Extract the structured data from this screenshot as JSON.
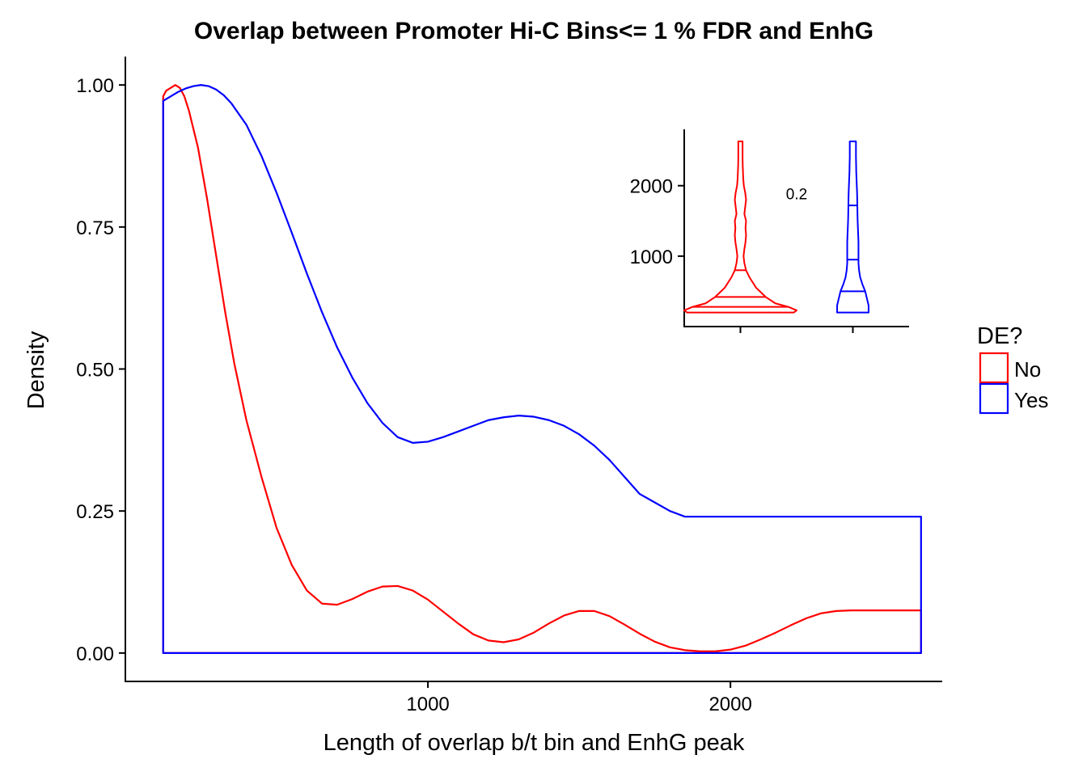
{
  "chart_data": [
    {
      "type": "area",
      "title": "Overlap between Promoter Hi-C Bins<= 1 % FDR and EnhG",
      "xlabel": "Length of overlap b/t bin and EnhG peak",
      "ylabel": "Density",
      "xlim": [
        0,
        2700
      ],
      "ylim": [
        -0.05,
        1.05
      ],
      "xticks": [
        1000,
        2000
      ],
      "yticks": [
        0.0,
        0.25,
        0.5,
        0.75,
        1.0
      ],
      "ytick_labels": [
        "0.00",
        "0.25",
        "0.50",
        "0.75",
        "1.00"
      ],
      "grid": false,
      "legend": {
        "title": "DE?",
        "position": "right"
      },
      "series": [
        {
          "name": "No",
          "color": "#ff0000",
          "x": [
            125,
            135,
            150,
            165,
            180,
            195,
            210,
            240,
            270,
            300,
            330,
            360,
            400,
            450,
            500,
            550,
            600,
            650,
            700,
            750,
            800,
            850,
            900,
            950,
            1000,
            1050,
            1100,
            1150,
            1200,
            1250,
            1300,
            1350,
            1400,
            1450,
            1500,
            1550,
            1600,
            1650,
            1700,
            1750,
            1800,
            1850,
            1900,
            1950,
            2000,
            2050,
            2100,
            2150,
            2200,
            2250,
            2300,
            2350,
            2400,
            2450,
            2500,
            2550,
            2600,
            2630
          ],
          "y": [
            0.98,
            0.99,
            0.995,
            1.0,
            0.995,
            0.98,
            0.955,
            0.89,
            0.8,
            0.7,
            0.6,
            0.51,
            0.41,
            0.31,
            0.22,
            0.155,
            0.11,
            0.087,
            0.085,
            0.095,
            0.108,
            0.117,
            0.118,
            0.11,
            0.094,
            0.073,
            0.052,
            0.033,
            0.022,
            0.019,
            0.024,
            0.036,
            0.052,
            0.066,
            0.074,
            0.074,
            0.065,
            0.05,
            0.034,
            0.02,
            0.01,
            0.005,
            0.003,
            0.003,
            0.006,
            0.013,
            0.024,
            0.036,
            0.049,
            0.061,
            0.07,
            0.074,
            0.075,
            0.075,
            0.075,
            0.075,
            0.075,
            0.075
          ]
        },
        {
          "name": "Yes",
          "color": "#0000ff",
          "x": [
            125,
            150,
            175,
            200,
            225,
            250,
            275,
            300,
            325,
            350,
            400,
            450,
            500,
            550,
            600,
            650,
            700,
            750,
            800,
            850,
            900,
            950,
            1000,
            1050,
            1100,
            1150,
            1200,
            1250,
            1300,
            1350,
            1400,
            1450,
            1500,
            1550,
            1600,
            1650,
            1700,
            1750,
            1800,
            1850,
            1900,
            1950,
            2000,
            2050,
            2100,
            2150,
            2200,
            2250,
            2300,
            2350,
            2400,
            2450,
            2500,
            2550,
            2600,
            2630
          ],
          "y": [
            0.972,
            0.98,
            0.988,
            0.994,
            0.998,
            1.0,
            0.998,
            0.992,
            0.982,
            0.968,
            0.93,
            0.875,
            0.81,
            0.74,
            0.668,
            0.6,
            0.538,
            0.485,
            0.44,
            0.405,
            0.38,
            0.37,
            0.372,
            0.38,
            0.39,
            0.4,
            0.41,
            0.415,
            0.418,
            0.416,
            0.41,
            0.4,
            0.385,
            0.365,
            0.34,
            0.31,
            0.28,
            0.265,
            0.25,
            0.24,
            0.24,
            0.24,
            0.24,
            0.24,
            0.24,
            0.24,
            0.24,
            0.24,
            0.24,
            0.24,
            0.24,
            0.24,
            0.24,
            0.24,
            0.24,
            0.24
          ]
        }
      ]
    },
    {
      "type": "violin",
      "ylim": [
        0,
        2800
      ],
      "yticks": [
        1000,
        2000
      ],
      "annotation": "0.2",
      "series": [
        {
          "name": "No",
          "color": "#ff0000",
          "y_range": [
            200,
            2630
          ],
          "quantiles": [
            280,
            420,
            800
          ],
          "profile": [
            [
              200,
              0.95
            ],
            [
              230,
              1.0
            ],
            [
              280,
              0.85
            ],
            [
              330,
              0.62
            ],
            [
              420,
              0.45
            ],
            [
              550,
              0.28
            ],
            [
              700,
              0.16
            ],
            [
              800,
              0.1
            ],
            [
              900,
              0.07
            ],
            [
              1000,
              0.055
            ],
            [
              1100,
              0.07
            ],
            [
              1200,
              0.09
            ],
            [
              1300,
              0.1
            ],
            [
              1400,
              0.09
            ],
            [
              1500,
              0.1
            ],
            [
              1600,
              0.07
            ],
            [
              1700,
              0.085
            ],
            [
              1800,
              0.1
            ],
            [
              1900,
              0.085
            ],
            [
              2000,
              0.06
            ],
            [
              2100,
              0.05
            ],
            [
              2200,
              0.045
            ],
            [
              2300,
              0.04
            ],
            [
              2400,
              0.038
            ],
            [
              2500,
              0.038
            ],
            [
              2600,
              0.038
            ],
            [
              2630,
              0.038
            ]
          ]
        },
        {
          "name": "Yes",
          "color": "#0000ff",
          "y_range": [
            200,
            2630
          ],
          "quantiles": [
            500,
            950,
            1720
          ],
          "profile": [
            [
              200,
              0.28
            ],
            [
              300,
              0.28
            ],
            [
              400,
              0.25
            ],
            [
              500,
              0.22
            ],
            [
              600,
              0.17
            ],
            [
              700,
              0.13
            ],
            [
              800,
              0.11
            ],
            [
              900,
              0.1
            ],
            [
              1000,
              0.1
            ],
            [
              1100,
              0.1
            ],
            [
              1200,
              0.1
            ],
            [
              1300,
              0.095
            ],
            [
              1400,
              0.09
            ],
            [
              1500,
              0.085
            ],
            [
              1600,
              0.082
            ],
            [
              1700,
              0.08
            ],
            [
              1800,
              0.078
            ],
            [
              1900,
              0.075
            ],
            [
              2000,
              0.07
            ],
            [
              2100,
              0.065
            ],
            [
              2200,
              0.06
            ],
            [
              2300,
              0.058
            ],
            [
              2400,
              0.055
            ],
            [
              2500,
              0.055
            ],
            [
              2600,
              0.055
            ],
            [
              2630,
              0.055
            ]
          ]
        }
      ]
    }
  ]
}
